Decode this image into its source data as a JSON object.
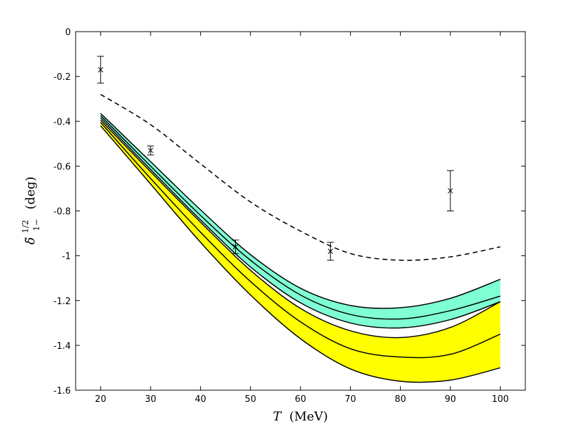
{
  "chart_data": {
    "type": "line",
    "title": "",
    "xlabel": "T (MeV)",
    "xlabel_var": "T",
    "xlabel_unit": "(MeV)",
    "ylabel": "δ̃ 1/2 1− (deg)",
    "ylabel_symbol": "δ̃",
    "ylabel_sup": "1/2",
    "ylabel_sub": "1−",
    "ylabel_unit": "(deg)",
    "xlim": [
      15,
      105
    ],
    "ylim": [
      -1.6,
      0
    ],
    "xticks": [
      20,
      30,
      40,
      50,
      60,
      70,
      80,
      90,
      100
    ],
    "yticks": [
      0,
      -0.2,
      -0.4,
      -0.6,
      -0.8,
      -1,
      -1.2,
      -1.4,
      -1.6
    ],
    "ytick_labels": [
      "0",
      "-0.2",
      "-0.4",
      "-0.6",
      "-0.8",
      "-1",
      "-1.2",
      "-1.4",
      "-1.6"
    ],
    "grid": false,
    "x": [
      20,
      30,
      40,
      50,
      60,
      70,
      80,
      90,
      100
    ],
    "bands": [
      {
        "name": "cyan band",
        "color": "#7fffd4",
        "upper": [
          -0.365,
          -0.58,
          -0.795,
          -0.995,
          -1.145,
          -1.222,
          -1.232,
          -1.19,
          -1.105
        ],
        "lower": [
          -0.385,
          -0.615,
          -0.84,
          -1.05,
          -1.21,
          -1.3,
          -1.322,
          -1.285,
          -1.205
        ],
        "central": [
          -0.375,
          -0.6,
          -0.82,
          -1.02,
          -1.175,
          -1.262,
          -1.282,
          -1.245,
          -1.18
        ]
      },
      {
        "name": "yellow band",
        "color": "#ffff00",
        "upper": [
          -0.395,
          -0.625,
          -0.85,
          -1.065,
          -1.235,
          -1.335,
          -1.365,
          -1.32,
          -1.205
        ],
        "lower": [
          -0.42,
          -0.68,
          -0.94,
          -1.175,
          -1.37,
          -1.505,
          -1.56,
          -1.555,
          -1.5
        ],
        "central": [
          -0.405,
          -0.655,
          -0.895,
          -1.115,
          -1.295,
          -1.415,
          -1.452,
          -1.44,
          -1.35
        ]
      }
    ],
    "series": [
      {
        "name": "dashed curve",
        "style": "dashed",
        "color": "#000000",
        "x": [
          20,
          30,
          40,
          50,
          60,
          70,
          80,
          90,
          100
        ],
        "values": [
          -0.28,
          -0.415,
          -0.59,
          -0.76,
          -0.89,
          -0.99,
          -1.02,
          -1.005,
          -0.96
        ]
      }
    ],
    "data_points": [
      {
        "x": 20,
        "y": -0.17,
        "err": 0.06
      },
      {
        "x": 30,
        "y": -0.53,
        "err": 0.02
      },
      {
        "x": 47,
        "y": -0.96,
        "err": 0.03
      },
      {
        "x": 66,
        "y": -0.98,
        "err": 0.04
      },
      {
        "x": 90,
        "y": -0.71,
        "err": 0.09
      }
    ]
  }
}
